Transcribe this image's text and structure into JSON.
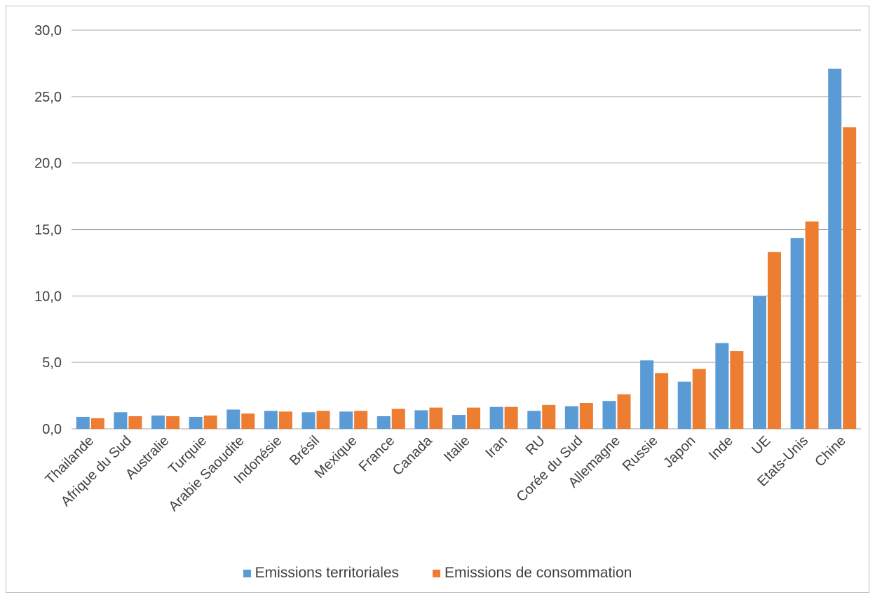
{
  "chart_data": {
    "type": "bar",
    "categories": [
      "Thailande",
      "Afrique du Sud",
      "Australie",
      "Turquie",
      "Arabie Saoudite",
      "Indonésie",
      "Brésil",
      "Mexique",
      "France",
      "Canada",
      "Italie",
      "Iran",
      "RU",
      "Corée du Sud",
      "Allemagne",
      "Russie",
      "Japon",
      "Inde",
      "UE",
      "Etats-Unis",
      "Chine"
    ],
    "series": [
      {
        "name": "Emissions territoriales",
        "color": "#5b9bd5",
        "values": [
          0.9,
          1.25,
          1.0,
          0.9,
          1.45,
          1.35,
          1.25,
          1.3,
          0.95,
          1.4,
          1.05,
          1.65,
          1.35,
          1.7,
          2.1,
          5.15,
          3.55,
          6.45,
          10.0,
          14.35,
          27.1
        ]
      },
      {
        "name": "Emissions de consommation",
        "color": "#ed7d31",
        "values": [
          0.8,
          0.95,
          0.95,
          1.0,
          1.15,
          1.3,
          1.35,
          1.35,
          1.5,
          1.6,
          1.6,
          1.65,
          1.8,
          1.95,
          2.6,
          4.2,
          4.5,
          5.85,
          13.3,
          15.6,
          22.7
        ]
      }
    ],
    "yticks": [
      "0,0",
      "5,0",
      "10,0",
      "15,0",
      "20,0",
      "25,0",
      "30,0"
    ],
    "ylim": [
      0,
      30
    ],
    "grid": true,
    "legend": "bottom"
  }
}
